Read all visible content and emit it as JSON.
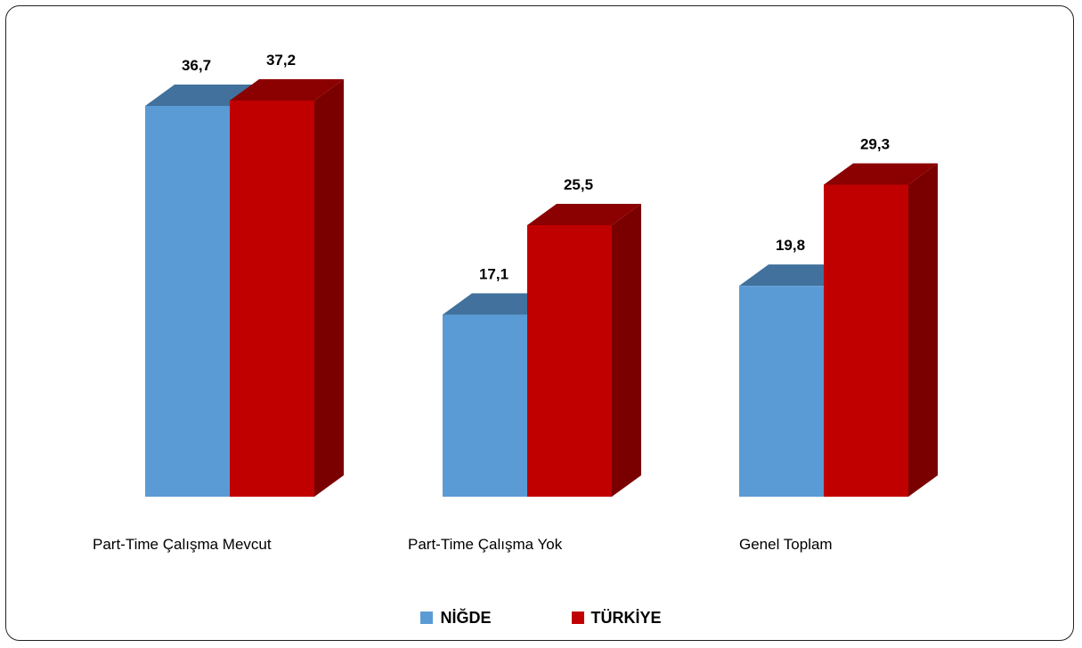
{
  "chart_data": {
    "type": "bar",
    "categories": [
      "Part-Time Çalışma Mevcut",
      "Part-Time Çalışma Yok",
      "Genel Toplam"
    ],
    "series": [
      {
        "name": "NİĞDE",
        "values": [
          36.7,
          17.1,
          19.8
        ],
        "value_labels": [
          "36,7",
          "17,1",
          "19,8"
        ],
        "color": "#5B9BD5",
        "top_color": "#41719C",
        "side_color": "#41719C"
      },
      {
        "name": "TÜRKİYE",
        "values": [
          37.2,
          25.5,
          29.3
        ],
        "value_labels": [
          "37,2",
          "25,5",
          "29,3"
        ],
        "color": "#C00000",
        "top_color": "#8B0000",
        "side_color": "#7A0000"
      }
    ],
    "title": "",
    "xlabel": "",
    "ylabel": "",
    "ylim": [
      0,
      37.2
    ],
    "grid": false,
    "legend_position": "bottom",
    "style": "3d-clustered-column"
  }
}
